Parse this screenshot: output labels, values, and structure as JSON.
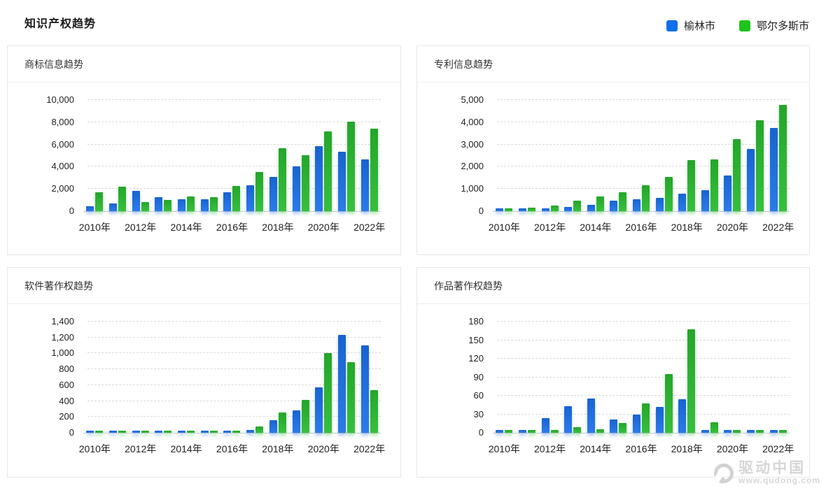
{
  "page_title": "知识产权趋势",
  "legend": {
    "items": [
      {
        "label": "榆林市",
        "color": "#0c70e8"
      },
      {
        "label": "鄂尔多斯市",
        "color": "#1ec41e"
      }
    ]
  },
  "watermark": {
    "brand": "驱动中国",
    "url": "www.qudong.com"
  },
  "chart_data": [
    {
      "type": "bar",
      "title": "商标信息趋势",
      "categories": [
        "2010年",
        "2011年",
        "2012年",
        "2013年",
        "2014年",
        "2015年",
        "2016年",
        "2017年",
        "2018年",
        "2019年",
        "2020年",
        "2021年",
        "2022年"
      ],
      "x_tick_labels": [
        "2010年",
        "2012年",
        "2014年",
        "2016年",
        "2018年",
        "2020年",
        "2022年"
      ],
      "ylim": [
        0,
        10000
      ],
      "ytick_labels": [
        "0",
        "2,000",
        "4,000",
        "6,000",
        "8,000",
        "10,000"
      ],
      "grid": "dashed-horizontal",
      "legend_position": "top-right-of-page",
      "series": [
        {
          "name": "榆林市",
          "color": "#1a6fe8",
          "values": [
            450,
            700,
            1850,
            1250,
            1080,
            1050,
            1700,
            2350,
            3100,
            4000,
            5850,
            5350,
            4650
          ]
        },
        {
          "name": "鄂尔多斯市",
          "color": "#27b92e",
          "values": [
            1700,
            2200,
            800,
            1000,
            1300,
            1250,
            2250,
            3550,
            5650,
            5050,
            7200,
            8050,
            7400
          ]
        }
      ]
    },
    {
      "type": "bar",
      "title": "专利信息趋势",
      "categories": [
        "2010年",
        "2011年",
        "2012年",
        "2013年",
        "2014年",
        "2015年",
        "2016年",
        "2017年",
        "2018年",
        "2019年",
        "2020年",
        "2021年",
        "2022年"
      ],
      "x_tick_labels": [
        "2010年",
        "2012年",
        "2014年",
        "2016年",
        "2018年",
        "2020年",
        "2022年"
      ],
      "ylim": [
        0,
        5000
      ],
      "ytick_labels": [
        "0",
        "1,000",
        "2,000",
        "3,000",
        "4,000",
        "5,000"
      ],
      "grid": "dashed-horizontal",
      "series": [
        {
          "name": "榆林市",
          "color": "#1a6fe8",
          "values": [
            130,
            140,
            140,
            180,
            290,
            480,
            550,
            600,
            800,
            930,
            1600,
            2800,
            3730
          ]
        },
        {
          "name": "鄂尔多斯市",
          "color": "#27b92e",
          "values": [
            140,
            155,
            250,
            460,
            650,
            860,
            1170,
            1530,
            2300,
            2330,
            3250,
            4080,
            4770
          ]
        }
      ]
    },
    {
      "type": "bar",
      "title": "软件著作权趋势",
      "categories": [
        "2010年",
        "2011年",
        "2012年",
        "2013年",
        "2014年",
        "2015年",
        "2016年",
        "2017年",
        "2018年",
        "2019年",
        "2020年",
        "2021年",
        "2022年"
      ],
      "x_tick_labels": [
        "2010年",
        "2012年",
        "2014年",
        "2016年",
        "2018年",
        "2020年",
        "2022年"
      ],
      "ylim": [
        0,
        1400
      ],
      "ytick_labels": [
        "0",
        "200",
        "400",
        "600",
        "800",
        "1,000",
        "1,200",
        "1,400"
      ],
      "grid": "dashed-horizontal",
      "series": [
        {
          "name": "榆林市",
          "color": "#1a6fe8",
          "values": [
            30,
            30,
            30,
            30,
            30,
            30,
            30,
            35,
            160,
            285,
            570,
            1235,
            1100
          ]
        },
        {
          "name": "鄂尔多斯市",
          "color": "#27b92e",
          "values": [
            30,
            30,
            30,
            30,
            30,
            30,
            30,
            80,
            255,
            410,
            1005,
            890,
            540
          ]
        }
      ]
    },
    {
      "type": "bar",
      "title": "作品著作权趋势",
      "categories": [
        "2010年",
        "2011年",
        "2012年",
        "2013年",
        "2014年",
        "2015年",
        "2016年",
        "2017年",
        "2018年",
        "2019年",
        "2020年",
        "2021年",
        "2022年"
      ],
      "x_tick_labels": [
        "2010年",
        "2012年",
        "2014年",
        "2016年",
        "2018年",
        "2020年",
        "2022年"
      ],
      "ylim": [
        0,
        180
      ],
      "ytick_labels": [
        "0",
        "30",
        "60",
        "90",
        "120",
        "150",
        "180"
      ],
      "grid": "dashed-horizontal",
      "series": [
        {
          "name": "榆林市",
          "color": "#1a6fe8",
          "values": [
            5,
            5,
            24,
            43,
            55,
            21,
            29,
            42,
            54,
            5,
            5,
            5,
            5
          ]
        },
        {
          "name": "鄂尔多斯市",
          "color": "#27b92e",
          "values": [
            5,
            5,
            5,
            9,
            6,
            16,
            47,
            95,
            167,
            17,
            5,
            5,
            5
          ]
        }
      ]
    }
  ]
}
